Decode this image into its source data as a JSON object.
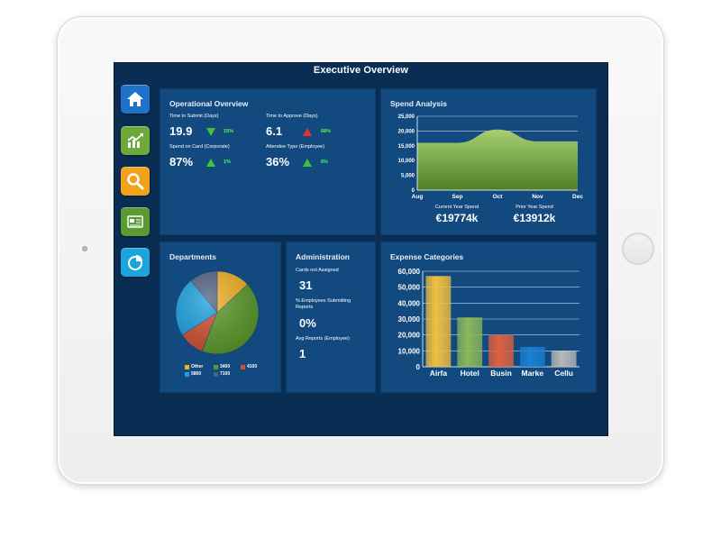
{
  "app": {
    "title": "Executive Overview"
  },
  "nav": [
    {
      "id": "home",
      "icon": "home-icon",
      "color": "#1e73c8"
    },
    {
      "id": "analytics",
      "icon": "chart-trend-icon",
      "color": "#6fa83a"
    },
    {
      "id": "search",
      "icon": "search-icon",
      "color": "#f0a21a"
    },
    {
      "id": "card",
      "icon": "card-icon",
      "color": "#5a9a34"
    },
    {
      "id": "pie",
      "icon": "pie-chart-icon",
      "color": "#1aa6dc"
    }
  ],
  "operational": {
    "title": "Operational Overview",
    "kpis": [
      {
        "label": "Time to Submit (Days)",
        "value": "19.9",
        "change": "15%",
        "trend": "down-good"
      },
      {
        "label": "Time to Approve (Days)",
        "value": "6.1",
        "change": "68%",
        "trend": "up-bad"
      },
      {
        "label": "Spend on Card (Corporate)",
        "value": "87%",
        "change": "1%",
        "trend": "up-good"
      },
      {
        "label": "Attendee Type (Employee)",
        "value": "36%",
        "change": "6%",
        "trend": "up-good"
      }
    ]
  },
  "spend": {
    "title": "Spend Analysis",
    "current_label": "Current Year Spend",
    "current_value": "€19774k",
    "prior_label": "Prior Year Spend",
    "prior_value": "€13912k"
  },
  "departments": {
    "title": "Departments"
  },
  "administration": {
    "title": "Administration",
    "items": [
      {
        "label": "Cards not Assigned",
        "value": "31"
      },
      {
        "label": "% Employees Submitting Reports",
        "value": "0%"
      },
      {
        "label": "Avg Reports (Employee)",
        "value": "1"
      }
    ]
  },
  "expense": {
    "title": "Expense Categories"
  },
  "chart_data": [
    {
      "type": "area",
      "x": [
        "Aug",
        "Sep",
        "Oct",
        "Nov",
        "Dec"
      ],
      "values": [
        16000,
        16000,
        20500,
        16500,
        16500
      ],
      "ylim": [
        0,
        25000
      ],
      "yticks": [
        "0",
        "5,000",
        "10,000",
        "15,000",
        "20,000",
        "25,000"
      ],
      "grid": true,
      "color": "#8ab85a"
    },
    {
      "type": "pie",
      "categories": [
        "Other",
        "3400",
        "4100",
        "5800",
        "7100"
      ],
      "values": [
        13,
        43,
        10,
        23,
        11
      ],
      "colors": [
        "#f0b020",
        "#5a9a2a",
        "#d05030",
        "#1aa0e0",
        "#506080"
      ],
      "legend": "bottom"
    },
    {
      "type": "bar",
      "categories": [
        "Airfa",
        "Hotel",
        "Busin",
        "Marke",
        "Cellu"
      ],
      "values": [
        57000,
        31000,
        20000,
        12500,
        10000
      ],
      "ylim": [
        0,
        60000
      ],
      "yticks": [
        "0",
        "10,000",
        "20,000",
        "30,000",
        "40,000",
        "50,000",
        "60,000"
      ],
      "grid": true,
      "colors": [
        "#f0c040",
        "#8ab85a",
        "#e06040",
        "#1a80d0",
        "#b8b8b8"
      ]
    }
  ]
}
